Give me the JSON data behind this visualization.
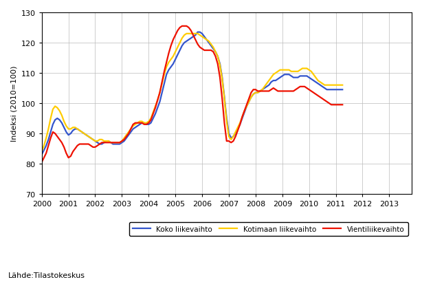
{
  "ylabel": "Indeksi (2010=100)",
  "source_text": "Lähde:Tilastokeskus",
  "ylim": [
    70,
    130
  ],
  "yticks": [
    70,
    80,
    90,
    100,
    110,
    120,
    130
  ],
  "xlim_start": 2000.0,
  "xlim_end": 2013.84,
  "legend": [
    "Koko liikevaihto",
    "Kotimaan liikevaihto",
    "Vientiliikevaihto"
  ],
  "colors": [
    "#3355cc",
    "#ffcc00",
    "#ee1100"
  ],
  "linewidth": 1.6,
  "koko": [
    83.0,
    84.5,
    86.0,
    88.0,
    90.5,
    93.0,
    94.5,
    95.0,
    94.5,
    93.5,
    92.0,
    90.5,
    89.5,
    90.0,
    91.0,
    91.5,
    91.5,
    91.0,
    90.5,
    90.0,
    89.5,
    89.0,
    88.5,
    88.0,
    87.5,
    87.0,
    86.5,
    86.5,
    87.0,
    87.5,
    87.5,
    87.0,
    86.5,
    86.5,
    86.5,
    86.5,
    87.0,
    87.5,
    88.5,
    89.5,
    90.5,
    91.5,
    92.0,
    92.5,
    93.0,
    93.5,
    93.5,
    93.0,
    93.0,
    93.5,
    95.0,
    96.5,
    98.5,
    100.5,
    103.5,
    106.5,
    109.5,
    111.0,
    112.0,
    113.0,
    114.5,
    116.0,
    117.5,
    119.0,
    120.0,
    120.5,
    121.0,
    121.5,
    122.0,
    122.5,
    123.5,
    123.5,
    123.0,
    122.0,
    121.0,
    120.0,
    119.0,
    118.0,
    117.0,
    115.5,
    113.0,
    108.5,
    102.0,
    95.0,
    90.0,
    88.5,
    89.0,
    90.0,
    91.5,
    93.0,
    95.0,
    97.0,
    99.0,
    100.5,
    102.0,
    103.0,
    103.5,
    103.5,
    104.0,
    104.5,
    105.0,
    105.5,
    106.0,
    107.0,
    107.5,
    107.5,
    108.0,
    108.5,
    109.0,
    109.5,
    109.5,
    109.5,
    109.0,
    108.5,
    108.5,
    108.5,
    109.0,
    109.0,
    109.0,
    109.0,
    108.5,
    108.0,
    107.5,
    107.0,
    106.5,
    106.0,
    105.5,
    105.0,
    104.5,
    104.5,
    104.5,
    104.5,
    104.5,
    104.5,
    104.5,
    104.5
  ],
  "kotimaan": [
    84.0,
    86.0,
    88.5,
    91.5,
    95.0,
    98.0,
    99.0,
    98.5,
    97.5,
    96.0,
    94.0,
    92.5,
    91.5,
    91.5,
    92.0,
    92.0,
    91.5,
    91.0,
    90.5,
    90.0,
    89.5,
    89.0,
    88.5,
    88.0,
    87.5,
    87.5,
    88.0,
    88.0,
    87.5,
    87.5,
    87.5,
    87.0,
    87.0,
    87.0,
    87.0,
    87.0,
    87.5,
    88.5,
    89.5,
    90.5,
    91.5,
    92.5,
    93.0,
    93.5,
    94.0,
    94.0,
    93.5,
    93.5,
    94.0,
    95.0,
    97.0,
    99.0,
    101.0,
    103.5,
    106.5,
    109.5,
    112.0,
    113.5,
    114.5,
    115.5,
    117.0,
    118.5,
    120.0,
    121.5,
    122.5,
    123.0,
    123.0,
    123.0,
    123.0,
    123.0,
    123.0,
    122.5,
    122.0,
    121.5,
    121.0,
    120.5,
    119.5,
    118.5,
    117.0,
    115.5,
    112.5,
    108.0,
    101.5,
    94.0,
    89.0,
    88.0,
    89.0,
    90.5,
    92.0,
    93.5,
    95.5,
    97.5,
    99.0,
    100.5,
    102.0,
    103.0,
    103.5,
    103.5,
    104.0,
    104.5,
    105.5,
    106.5,
    107.5,
    108.5,
    109.5,
    110.0,
    110.5,
    111.0,
    111.0,
    111.0,
    111.0,
    111.0,
    110.5,
    110.5,
    110.5,
    110.5,
    111.0,
    111.5,
    111.5,
    111.5,
    111.0,
    110.5,
    109.5,
    108.5,
    107.5,
    107.0,
    106.5,
    106.0,
    106.0,
    106.0,
    106.0,
    106.0,
    106.0,
    106.0,
    106.0,
    106.0
  ],
  "vienti": [
    80.5,
    82.0,
    83.5,
    86.0,
    88.5,
    90.5,
    90.0,
    89.0,
    88.0,
    87.0,
    85.5,
    83.5,
    82.0,
    82.5,
    84.0,
    85.0,
    86.0,
    86.5,
    86.5,
    86.5,
    86.5,
    86.5,
    86.0,
    85.5,
    85.5,
    86.0,
    86.5,
    87.0,
    87.0,
    87.0,
    87.0,
    87.0,
    87.0,
    87.0,
    87.0,
    87.0,
    87.5,
    88.0,
    89.0,
    90.0,
    91.5,
    93.0,
    93.5,
    93.5,
    93.5,
    93.5,
    93.0,
    93.0,
    93.5,
    94.5,
    96.5,
    98.5,
    101.0,
    103.5,
    107.0,
    110.5,
    113.5,
    116.5,
    119.0,
    121.0,
    122.5,
    124.0,
    125.0,
    125.5,
    125.5,
    125.5,
    125.0,
    124.0,
    122.5,
    121.0,
    119.5,
    118.5,
    118.0,
    117.5,
    117.5,
    117.5,
    117.5,
    117.0,
    115.5,
    113.0,
    108.5,
    101.5,
    93.5,
    87.5,
    87.5,
    87.0,
    87.5,
    89.0,
    91.0,
    93.0,
    95.5,
    97.5,
    99.5,
    101.5,
    103.5,
    104.5,
    104.5,
    104.0,
    104.0,
    104.0,
    104.0,
    104.0,
    104.0,
    104.5,
    105.0,
    104.5,
    104.0,
    104.0,
    104.0,
    104.0,
    104.0,
    104.0,
    104.0,
    104.0,
    104.5,
    105.0,
    105.5,
    105.5,
    105.5,
    105.0,
    104.5,
    104.0,
    103.5,
    103.0,
    102.5,
    102.0,
    101.5,
    101.0,
    100.5,
    100.0,
    99.5,
    99.5,
    99.5,
    99.5,
    99.5,
    99.5
  ]
}
